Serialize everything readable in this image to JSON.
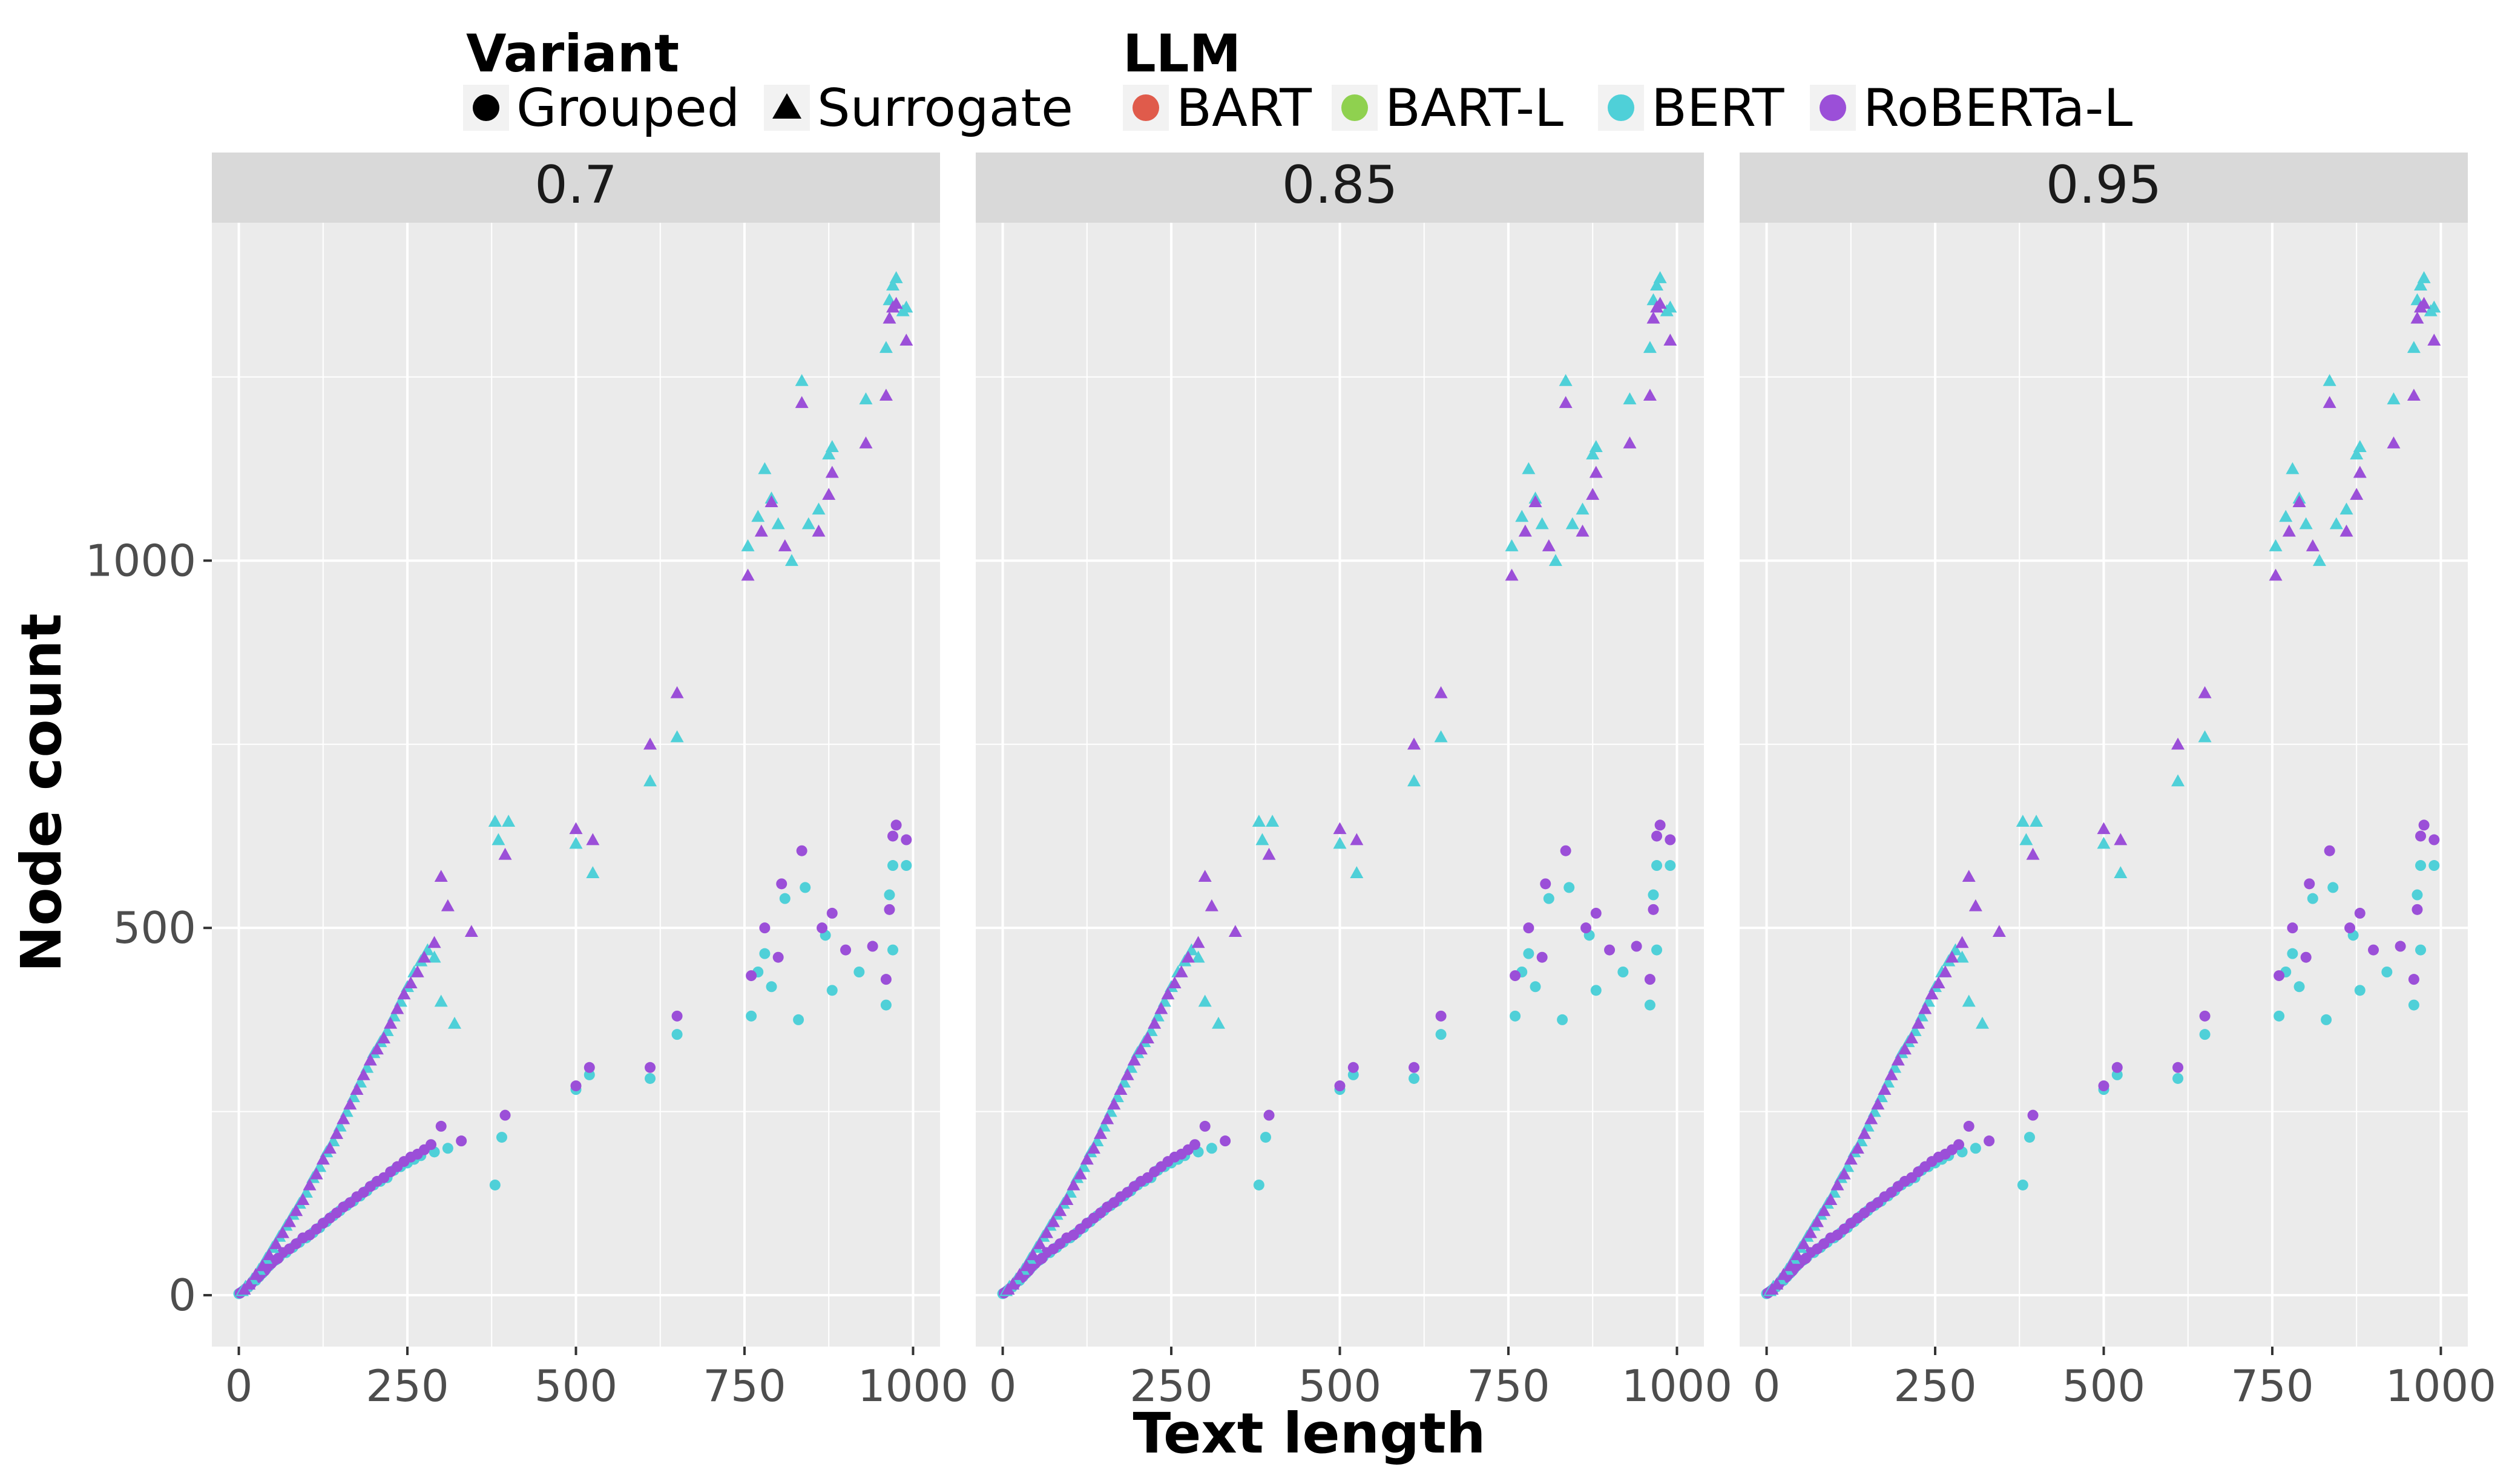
{
  "chart_data": {
    "type": "scatter",
    "facet_labels": [
      "0.7",
      "0.85",
      "0.95"
    ],
    "xlabel": "Text length",
    "ylabel": "Node count",
    "xlim": [
      -40,
      1040
    ],
    "ylim": [
      -70,
      1460
    ],
    "x_ticks": [
      0,
      250,
      500,
      750,
      1000
    ],
    "x_tick_labels": [
      "0",
      "250",
      "500",
      "750",
      "1000"
    ],
    "y_ticks": [
      0,
      500,
      1000
    ],
    "y_tick_labels": [
      "0",
      "500",
      "1000"
    ],
    "grid": true,
    "legend": {
      "position": "top",
      "variant_title": "Variant",
      "variant_items": [
        {
          "label": "Grouped",
          "shape": "circle"
        },
        {
          "label": "Surrogate",
          "shape": "triangle"
        }
      ],
      "llm_title": "LLM",
      "llm_items": [
        {
          "label": "BART",
          "color": "#e05b4b"
        },
        {
          "label": "BART-L",
          "color": "#8fd14f"
        },
        {
          "label": "BERT",
          "color": "#4fd0d8"
        },
        {
          "label": "RoBERTa-L",
          "color": "#9b4fd8"
        }
      ]
    },
    "colors": {
      "BART": "#e05b4b",
      "BART-L": "#8fd14f",
      "BERT": "#4fd0d8",
      "RoBERTa-L": "#9b4fd8",
      "panel_bg": "#ebebeb",
      "strip_bg": "#d9d9d9",
      "grid": "#ffffff"
    },
    "note": "All three facets display the same point set.",
    "series": [
      {
        "name": "Grouped / BERT",
        "llm": "BERT",
        "variant": "Grouped",
        "points": [
          [
            0,
            2
          ],
          [
            5,
            5
          ],
          [
            10,
            8
          ],
          [
            15,
            12
          ],
          [
            20,
            18
          ],
          [
            25,
            20
          ],
          [
            30,
            25
          ],
          [
            35,
            30
          ],
          [
            40,
            35
          ],
          [
            45,
            40
          ],
          [
            50,
            45
          ],
          [
            55,
            48
          ],
          [
            60,
            52
          ],
          [
            70,
            58
          ],
          [
            80,
            65
          ],
          [
            90,
            72
          ],
          [
            100,
            78
          ],
          [
            110,
            85
          ],
          [
            120,
            92
          ],
          [
            130,
            100
          ],
          [
            140,
            108
          ],
          [
            150,
            115
          ],
          [
            160,
            122
          ],
          [
            170,
            128
          ],
          [
            180,
            135
          ],
          [
            190,
            142
          ],
          [
            200,
            150
          ],
          [
            210,
            155
          ],
          [
            220,
            160
          ],
          [
            230,
            170
          ],
          [
            240,
            175
          ],
          [
            250,
            180
          ],
          [
            260,
            185
          ],
          [
            270,
            190
          ],
          [
            290,
            195
          ],
          [
            310,
            200
          ],
          [
            380,
            150
          ],
          [
            390,
            215
          ],
          [
            500,
            280
          ],
          [
            520,
            300
          ],
          [
            610,
            295
          ],
          [
            650,
            355
          ],
          [
            760,
            380
          ],
          [
            770,
            440
          ],
          [
            780,
            465
          ],
          [
            790,
            420
          ],
          [
            810,
            540
          ],
          [
            830,
            375
          ],
          [
            840,
            555
          ],
          [
            870,
            490
          ],
          [
            880,
            415
          ],
          [
            920,
            440
          ],
          [
            960,
            395
          ],
          [
            965,
            545
          ],
          [
            970,
            470
          ],
          [
            970,
            585
          ],
          [
            990,
            585
          ]
        ]
      },
      {
        "name": "Grouped / RoBERTa-L",
        "llm": "RoBERTa-L",
        "variant": "Grouped",
        "points": [
          [
            2,
            3
          ],
          [
            8,
            7
          ],
          [
            12,
            10
          ],
          [
            18,
            15
          ],
          [
            22,
            20
          ],
          [
            28,
            24
          ],
          [
            32,
            28
          ],
          [
            38,
            33
          ],
          [
            42,
            38
          ],
          [
            48,
            43
          ],
          [
            52,
            47
          ],
          [
            58,
            50
          ],
          [
            65,
            58
          ],
          [
            75,
            63
          ],
          [
            85,
            70
          ],
          [
            95,
            78
          ],
          [
            105,
            82
          ],
          [
            115,
            90
          ],
          [
            125,
            98
          ],
          [
            135,
            105
          ],
          [
            145,
            112
          ],
          [
            155,
            120
          ],
          [
            165,
            126
          ],
          [
            175,
            134
          ],
          [
            185,
            140
          ],
          [
            195,
            148
          ],
          [
            205,
            155
          ],
          [
            215,
            160
          ],
          [
            225,
            168
          ],
          [
            235,
            175
          ],
          [
            245,
            182
          ],
          [
            255,
            188
          ],
          [
            265,
            192
          ],
          [
            275,
            198
          ],
          [
            285,
            205
          ],
          [
            300,
            230
          ],
          [
            330,
            210
          ],
          [
            395,
            245
          ],
          [
            500,
            285
          ],
          [
            520,
            310
          ],
          [
            610,
            310
          ],
          [
            650,
            380
          ],
          [
            760,
            435
          ],
          [
            780,
            500
          ],
          [
            800,
            460
          ],
          [
            805,
            560
          ],
          [
            835,
            605
          ],
          [
            865,
            500
          ],
          [
            880,
            520
          ],
          [
            900,
            470
          ],
          [
            940,
            475
          ],
          [
            960,
            430
          ],
          [
            965,
            525
          ],
          [
            970,
            625
          ],
          [
            975,
            640
          ],
          [
            990,
            620
          ]
        ]
      },
      {
        "name": "Surrogate / BERT",
        "llm": "BERT",
        "variant": "Surrogate",
        "points": [
          [
            5,
            6
          ],
          [
            10,
            12
          ],
          [
            20,
            22
          ],
          [
            30,
            35
          ],
          [
            40,
            50
          ],
          [
            50,
            65
          ],
          [
            60,
            80
          ],
          [
            70,
            95
          ],
          [
            80,
            110
          ],
          [
            90,
            125
          ],
          [
            100,
            140
          ],
          [
            110,
            160
          ],
          [
            120,
            175
          ],
          [
            130,
            195
          ],
          [
            140,
            210
          ],
          [
            150,
            230
          ],
          [
            160,
            250
          ],
          [
            170,
            270
          ],
          [
            180,
            290
          ],
          [
            190,
            310
          ],
          [
            200,
            330
          ],
          [
            210,
            345
          ],
          [
            220,
            360
          ],
          [
            230,
            380
          ],
          [
            240,
            400
          ],
          [
            250,
            420
          ],
          [
            260,
            440
          ],
          [
            270,
            455
          ],
          [
            280,
            470
          ],
          [
            290,
            460
          ],
          [
            300,
            400
          ],
          [
            320,
            370
          ],
          [
            380,
            645
          ],
          [
            385,
            620
          ],
          [
            400,
            645
          ],
          [
            500,
            615
          ],
          [
            525,
            575
          ],
          [
            610,
            700
          ],
          [
            650,
            760
          ],
          [
            755,
            1020
          ],
          [
            770,
            1060
          ],
          [
            780,
            1125
          ],
          [
            790,
            1085
          ],
          [
            800,
            1050
          ],
          [
            820,
            1000
          ],
          [
            835,
            1245
          ],
          [
            845,
            1050
          ],
          [
            860,
            1070
          ],
          [
            875,
            1145
          ],
          [
            880,
            1155
          ],
          [
            930,
            1220
          ],
          [
            960,
            1290
          ],
          [
            965,
            1355
          ],
          [
            970,
            1375
          ],
          [
            975,
            1385
          ],
          [
            985,
            1340
          ],
          [
            990,
            1345
          ]
        ]
      },
      {
        "name": "Surrogate / RoBERTa-L",
        "llm": "RoBERTa-L",
        "variant": "Surrogate",
        "points": [
          [
            8,
            8
          ],
          [
            15,
            15
          ],
          [
            25,
            28
          ],
          [
            35,
            40
          ],
          [
            45,
            55
          ],
          [
            55,
            70
          ],
          [
            65,
            85
          ],
          [
            75,
            100
          ],
          [
            85,
            115
          ],
          [
            95,
            130
          ],
          [
            105,
            150
          ],
          [
            115,
            165
          ],
          [
            125,
            185
          ],
          [
            135,
            200
          ],
          [
            145,
            220
          ],
          [
            155,
            240
          ],
          [
            165,
            260
          ],
          [
            175,
            280
          ],
          [
            185,
            300
          ],
          [
            195,
            320
          ],
          [
            205,
            335
          ],
          [
            215,
            350
          ],
          [
            225,
            370
          ],
          [
            235,
            390
          ],
          [
            245,
            410
          ],
          [
            255,
            425
          ],
          [
            265,
            440
          ],
          [
            275,
            460
          ],
          [
            290,
            480
          ],
          [
            300,
            570
          ],
          [
            310,
            530
          ],
          [
            345,
            495
          ],
          [
            395,
            600
          ],
          [
            500,
            635
          ],
          [
            525,
            620
          ],
          [
            610,
            750
          ],
          [
            650,
            820
          ],
          [
            755,
            980
          ],
          [
            775,
            1040
          ],
          [
            790,
            1080
          ],
          [
            810,
            1020
          ],
          [
            835,
            1215
          ],
          [
            860,
            1040
          ],
          [
            875,
            1090
          ],
          [
            880,
            1120
          ],
          [
            930,
            1160
          ],
          [
            960,
            1225
          ],
          [
            965,
            1330
          ],
          [
            970,
            1345
          ],
          [
            975,
            1350
          ],
          [
            990,
            1300
          ]
        ]
      }
    ]
  }
}
